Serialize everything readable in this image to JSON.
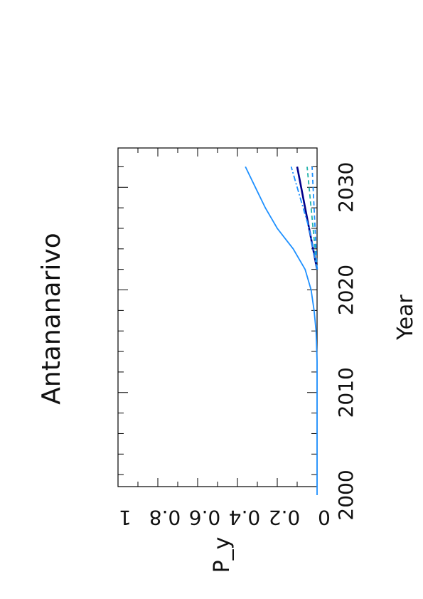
{
  "chart_data": {
    "type": "line",
    "title": "Antananarivo",
    "xlabel": "Year",
    "ylabel": "P_y",
    "xlim": [
      2000,
      2033
    ],
    "ylim": [
      0,
      1
    ],
    "x_ticks": [
      2000,
      2010,
      2020,
      2030
    ],
    "x_tick_labels": [
      "2000",
      "2010",
      "2020",
      "2030"
    ],
    "y_ticks": [
      0,
      0.2,
      0.4,
      0.6,
      0.8,
      1
    ],
    "y_tick_labels": [
      "0",
      "0.2",
      "0.4",
      "0.6",
      "0.8",
      "1"
    ],
    "orientation": "rotated 90 degrees counter-clockwise",
    "grid": false,
    "legend": "none",
    "series": [
      {
        "color": "#1E90FF",
        "style": "solid",
        "x": [
          2000,
          2010,
          2013,
          2016,
          2018,
          2020,
          2022,
          2024,
          2025,
          2026,
          2028,
          2030,
          2032
        ],
        "y": [
          0,
          0,
          0,
          0.005,
          0.015,
          0.03,
          0.06,
          0.12,
          0.16,
          0.2,
          0.26,
          0.31,
          0.36
        ]
      },
      {
        "color": "#00008B",
        "style": "solid",
        "x": [
          2022,
          2024,
          2026,
          2028,
          2030,
          2032
        ],
        "y": [
          0.0,
          0.02,
          0.04,
          0.06,
          0.08,
          0.1
        ]
      },
      {
        "color": "#1E90FF",
        "style": "dashdot",
        "x": [
          2022,
          2024,
          2026,
          2028,
          2030,
          2032
        ],
        "y": [
          0.0,
          0.02,
          0.04,
          0.07,
          0.1,
          0.13
        ]
      },
      {
        "color": "#20B2AA",
        "style": "dashed",
        "x": [
          2022,
          2024,
          2026,
          2028,
          2030,
          2032
        ],
        "y": [
          0.0,
          0.01,
          0.02,
          0.03,
          0.04,
          0.05
        ]
      },
      {
        "color": "#1E90FF",
        "style": "dashed",
        "x": [
          2022,
          2024,
          2026,
          2028,
          2030,
          2032
        ],
        "y": [
          0.0,
          0.005,
          0.01,
          0.015,
          0.02,
          0.025
        ]
      }
    ]
  }
}
